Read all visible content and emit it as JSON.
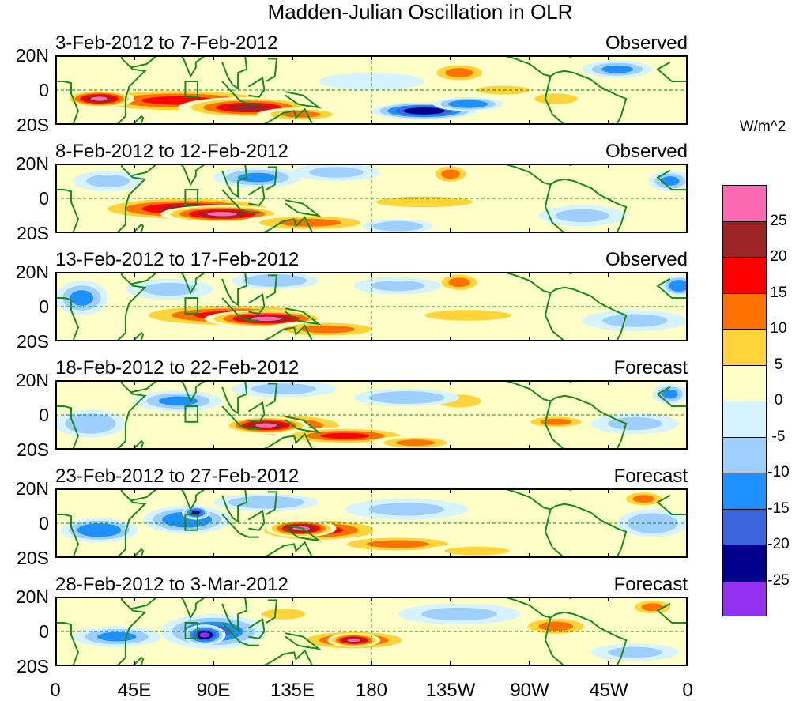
{
  "chart_data": {
    "type": "heatmap",
    "title": "Madden-Julian Oscillation in OLR",
    "units": "W/m^2",
    "ylabels": [
      "20N",
      "0",
      "20S"
    ],
    "xlabels": [
      "0",
      "45E",
      "90E",
      "135E",
      "180",
      "135W",
      "90W",
      "45W",
      "0"
    ],
    "ylim": [
      -20,
      20
    ],
    "xlim": [
      0,
      360
    ],
    "colorbar": {
      "levels": [
        "25",
        "20",
        "15",
        "10",
        "5",
        "0",
        "-5",
        "-10",
        "-15",
        "-20",
        "-25"
      ],
      "colors": [
        "#ff69b4",
        "#9b2424",
        "#ff0000",
        "#ff7200",
        "#ffd43a",
        "#ffffc8",
        "#d6f3ff",
        "#9fcfff",
        "#1e90ff",
        "#3c64dc",
        "#00008c",
        "#9430f0"
      ]
    },
    "panels": [
      {
        "period": "3-Feb-2012 to 7-Feb-2012",
        "kind": "Observed",
        "anomalies": [
          {
            "lon": 70,
            "lat": -6,
            "rlon": 60,
            "rlat": 7,
            "value": 18
          },
          {
            "lon": 25,
            "lat": -5,
            "rlon": 20,
            "rlat": 5,
            "value": 25
          },
          {
            "lon": 110,
            "lat": -10,
            "rlon": 40,
            "rlat": 6,
            "value": 20
          },
          {
            "lon": 140,
            "lat": -14,
            "rlon": 25,
            "rlat": 4,
            "value": 12
          },
          {
            "lon": 210,
            "lat": -12,
            "rlon": 30,
            "rlat": 5,
            "value": -25
          },
          {
            "lon": 235,
            "lat": -8,
            "rlon": 20,
            "rlat": 4,
            "value": -15
          },
          {
            "lon": 230,
            "lat": 10,
            "rlon": 18,
            "rlat": 6,
            "value": 12
          },
          {
            "lon": 255,
            "lat": 0,
            "rlon": 25,
            "rlat": 4,
            "value": 6
          },
          {
            "lon": 285,
            "lat": -5,
            "rlon": 20,
            "rlat": 5,
            "value": 7
          },
          {
            "lon": 320,
            "lat": 12,
            "rlon": 20,
            "rlat": 5,
            "value": -12
          },
          {
            "lon": 345,
            "lat": 0,
            "rlon": 14,
            "rlat": 6,
            "value": 4
          },
          {
            "lon": 180,
            "lat": 5,
            "rlon": 30,
            "rlat": 5,
            "value": -5
          },
          {
            "lon": 20,
            "lat": 15,
            "rlon": 20,
            "rlat": 5,
            "value": 4
          }
        ]
      },
      {
        "period": "8-Feb-2012 to 12-Feb-2012",
        "kind": "Observed",
        "anomalies": [
          {
            "lon": 75,
            "lat": -6,
            "rlon": 55,
            "rlat": 7,
            "value": 20
          },
          {
            "lon": 95,
            "lat": -9,
            "rlon": 35,
            "rlat": 5,
            "value": 26
          },
          {
            "lon": 145,
            "lat": -14,
            "rlon": 40,
            "rlat": 5,
            "value": 12
          },
          {
            "lon": 210,
            "lat": -2,
            "rlon": 45,
            "rlat": 5,
            "value": 5
          },
          {
            "lon": 225,
            "lat": 14,
            "rlon": 12,
            "rlat": 6,
            "value": 12
          },
          {
            "lon": 30,
            "lat": 10,
            "rlon": 20,
            "rlat": 6,
            "value": -8
          },
          {
            "lon": 115,
            "lat": 12,
            "rlon": 25,
            "rlat": 6,
            "value": -12
          },
          {
            "lon": 160,
            "lat": 15,
            "rlon": 25,
            "rlat": 5,
            "value": -8
          },
          {
            "lon": 280,
            "lat": 2,
            "rlon": 25,
            "rlat": 5,
            "value": 4
          },
          {
            "lon": 300,
            "lat": -10,
            "rlon": 25,
            "rlat": 6,
            "value": -8
          },
          {
            "lon": 350,
            "lat": 10,
            "rlon": 12,
            "rlat": 6,
            "value": -12
          },
          {
            "lon": 195,
            "lat": -16,
            "rlon": 20,
            "rlat": 4,
            "value": -10
          }
        ]
      },
      {
        "period": "13-Feb-2012 to 17-Feb-2012",
        "kind": "Observed",
        "anomalies": [
          {
            "lon": 100,
            "lat": -5,
            "rlon": 60,
            "rlat": 7,
            "value": 18
          },
          {
            "lon": 120,
            "lat": -7,
            "rlon": 35,
            "rlat": 5,
            "value": 26
          },
          {
            "lon": 155,
            "lat": -13,
            "rlon": 35,
            "rlat": 5,
            "value": 14
          },
          {
            "lon": 235,
            "lat": -5,
            "rlon": 40,
            "rlat": 5,
            "value": 6
          },
          {
            "lon": 230,
            "lat": 14,
            "rlon": 14,
            "rlat": 6,
            "value": 10
          },
          {
            "lon": 15,
            "lat": 5,
            "rlon": 15,
            "rlat": 10,
            "value": -12
          },
          {
            "lon": 65,
            "lat": 10,
            "rlon": 25,
            "rlat": 6,
            "value": -8
          },
          {
            "lon": 125,
            "lat": 15,
            "rlon": 25,
            "rlat": 5,
            "value": -10
          },
          {
            "lon": 195,
            "lat": 12,
            "rlon": 25,
            "rlat": 5,
            "value": -8
          },
          {
            "lon": 330,
            "lat": -8,
            "rlon": 30,
            "rlat": 6,
            "value": -8
          },
          {
            "lon": 355,
            "lat": 12,
            "rlon": 10,
            "rlat": 6,
            "value": -15
          },
          {
            "lon": 280,
            "lat": 5,
            "rlon": 20,
            "rlat": 5,
            "value": 4
          }
        ]
      },
      {
        "period": "18-Feb-2012 to 22-Feb-2012",
        "kind": "Forecast",
        "anomalies": [
          {
            "lon": 130,
            "lat": -6,
            "rlon": 40,
            "rlat": 7,
            "value": 18
          },
          {
            "lon": 120,
            "lat": -6,
            "rlon": 25,
            "rlat": 5,
            "value": 25
          },
          {
            "lon": 165,
            "lat": -12,
            "rlon": 40,
            "rlat": 5,
            "value": 15
          },
          {
            "lon": 205,
            "lat": -16,
            "rlon": 25,
            "rlat": 4,
            "value": 12
          },
          {
            "lon": 230,
            "lat": 8,
            "rlon": 20,
            "rlat": 6,
            "value": 6
          },
          {
            "lon": 285,
            "lat": -4,
            "rlon": 20,
            "rlat": 4,
            "value": 10
          },
          {
            "lon": 20,
            "lat": -5,
            "rlon": 20,
            "rlat": 8,
            "value": -10
          },
          {
            "lon": 70,
            "lat": 8,
            "rlon": 25,
            "rlat": 6,
            "value": -12
          },
          {
            "lon": 130,
            "lat": 15,
            "rlon": 30,
            "rlat": 5,
            "value": -8
          },
          {
            "lon": 200,
            "lat": 10,
            "rlon": 30,
            "rlat": 5,
            "value": -10
          },
          {
            "lon": 330,
            "lat": -5,
            "rlon": 25,
            "rlat": 6,
            "value": -8
          },
          {
            "lon": 350,
            "lat": 12,
            "rlon": 10,
            "rlat": 6,
            "value": -12
          }
        ]
      },
      {
        "period": "23-Feb-2012 to 27-Feb-2012",
        "kind": "Forecast",
        "anomalies": [
          {
            "lon": 150,
            "lat": -4,
            "rlon": 40,
            "rlat": 7,
            "value": 18
          },
          {
            "lon": 140,
            "lat": -3,
            "rlon": 20,
            "rlat": 5,
            "value": 25
          },
          {
            "lon": 195,
            "lat": -12,
            "rlon": 40,
            "rlat": 5,
            "value": 10
          },
          {
            "lon": 240,
            "lat": -16,
            "rlon": 30,
            "rlat": 4,
            "value": 6
          },
          {
            "lon": 25,
            "lat": -4,
            "rlon": 22,
            "rlat": 7,
            "value": -15
          },
          {
            "lon": 75,
            "lat": 2,
            "rlon": 25,
            "rlat": 8,
            "value": -15
          },
          {
            "lon": 80,
            "lat": 6,
            "rlon": 8,
            "rlat": 4,
            "value": -22
          },
          {
            "lon": 120,
            "lat": 12,
            "rlon": 30,
            "rlat": 5,
            "value": -10
          },
          {
            "lon": 200,
            "lat": 8,
            "rlon": 35,
            "rlat": 6,
            "value": -8
          },
          {
            "lon": 340,
            "lat": 0,
            "rlon": 20,
            "rlat": 8,
            "value": -10
          },
          {
            "lon": 335,
            "lat": 14,
            "rlon": 14,
            "rlat": 5,
            "value": 10
          },
          {
            "lon": 285,
            "lat": 4,
            "rlon": 20,
            "rlat": 5,
            "value": 4
          }
        ]
      },
      {
        "period": "28-Feb-2012 to 3-Mar-2012",
        "kind": "Forecast",
        "anomalies": [
          {
            "lon": 170,
            "lat": -5,
            "rlon": 35,
            "rlat": 6,
            "value": 16
          },
          {
            "lon": 170,
            "lat": -5,
            "rlon": 15,
            "rlat": 4,
            "value": 26
          },
          {
            "lon": 90,
            "lat": 0,
            "rlon": 30,
            "rlat": 10,
            "value": -18
          },
          {
            "lon": 85,
            "lat": -2,
            "rlon": 12,
            "rlat": 6,
            "value": -26
          },
          {
            "lon": 35,
            "lat": -3,
            "rlon": 25,
            "rlat": 6,
            "value": -12
          },
          {
            "lon": 130,
            "lat": 10,
            "rlon": 20,
            "rlat": 5,
            "value": 6
          },
          {
            "lon": 230,
            "lat": 10,
            "rlon": 35,
            "rlat": 6,
            "value": -8
          },
          {
            "lon": 285,
            "lat": 3,
            "rlon": 22,
            "rlat": 6,
            "value": 12
          },
          {
            "lon": 340,
            "lat": 14,
            "rlon": 14,
            "rlat": 5,
            "value": 12
          },
          {
            "lon": 20,
            "lat": 14,
            "rlon": 20,
            "rlat": 5,
            "value": 4
          },
          {
            "lon": 330,
            "lat": -12,
            "rlon": 25,
            "rlat": 5,
            "value": -8
          }
        ]
      }
    ]
  }
}
